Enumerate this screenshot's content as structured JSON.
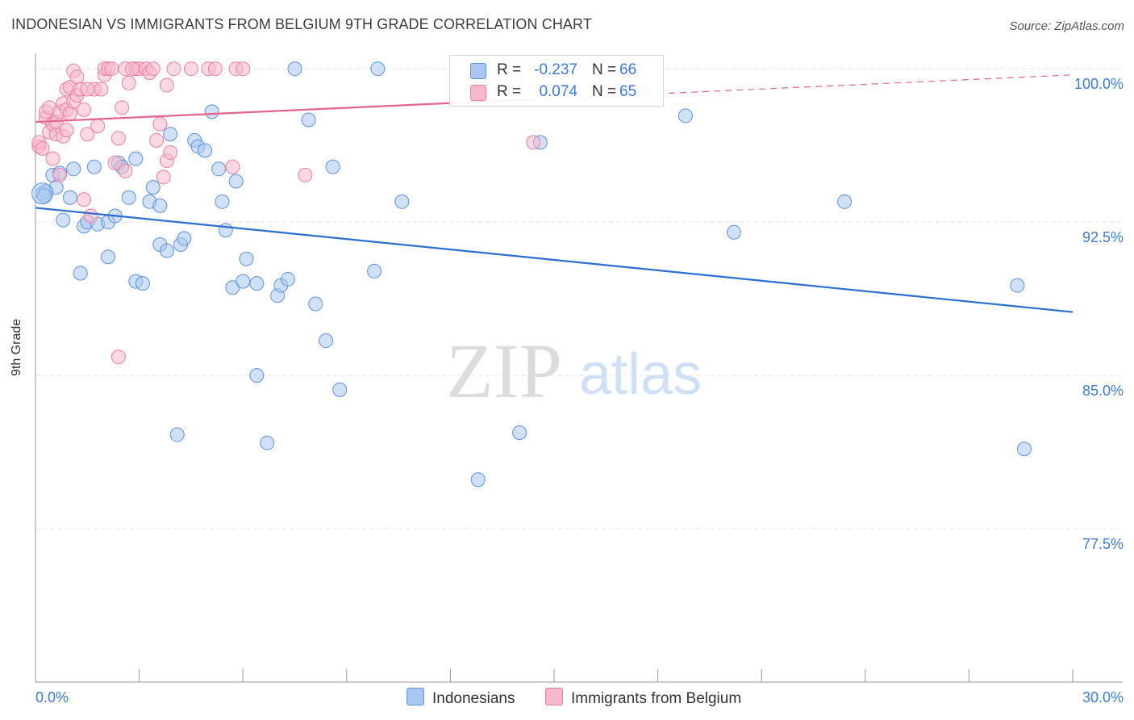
{
  "title": "INDONESIAN VS IMMIGRANTS FROM BELGIUM 9TH GRADE CORRELATION CHART",
  "source": "Source: ZipAtlas.com",
  "watermark": {
    "zip": "ZIP",
    "atlas": "atlas"
  },
  "legend": {
    "rows": [
      {
        "r_label": "R =",
        "r_value": "-0.237",
        "n_label": "N =",
        "n_value": "66",
        "color": "#a9c7f0"
      },
      {
        "r_label": "R =",
        "r_value": "0.074",
        "n_label": "N =",
        "n_value": "65",
        "color": "#f7b8cb"
      }
    ]
  },
  "bottom_legend": [
    "Indonesians",
    "Immigrants from Belgium"
  ],
  "chart_data": {
    "type": "scatter",
    "xlabel": "",
    "ylabel": "9th Grade",
    "xlim": [
      0,
      30
    ],
    "ylim": [
      70.0,
      100.6
    ],
    "x_tick_labels": [
      "0.0%",
      "30.0%"
    ],
    "y_ticks": [
      77.5,
      85.0,
      92.5,
      100.0
    ],
    "y_tick_labels": [
      "77.5%",
      "85.0%",
      "92.5%",
      "100.0%"
    ],
    "grid": true,
    "legend_position": "top-center",
    "series": [
      {
        "name": "Indonesians",
        "color": "#5b93e0",
        "fill": "#a9c7f0",
        "trend": {
          "x": [
            0,
            30
          ],
          "y": [
            93.2,
            88.1
          ]
        },
        "trend_line": "#2a6fd0",
        "points": [
          [
            0.2,
            93.9
          ],
          [
            0.3,
            94.0
          ],
          [
            0.5,
            94.8
          ],
          [
            0.6,
            94.2
          ],
          [
            0.7,
            94.9
          ],
          [
            0.8,
            92.6
          ],
          [
            1.0,
            93.7
          ],
          [
            1.1,
            95.1
          ],
          [
            1.3,
            90.0
          ],
          [
            1.4,
            92.3
          ],
          [
            1.5,
            92.5
          ],
          [
            1.7,
            95.2
          ],
          [
            1.8,
            92.4
          ],
          [
            2.1,
            90.8
          ],
          [
            2.1,
            92.5
          ],
          [
            2.3,
            92.8
          ],
          [
            2.4,
            95.4
          ],
          [
            2.5,
            95.2
          ],
          [
            2.7,
            93.7
          ],
          [
            2.9,
            95.6
          ],
          [
            2.9,
            89.6
          ],
          [
            3.1,
            89.5
          ],
          [
            3.3,
            93.5
          ],
          [
            3.4,
            94.2
          ],
          [
            3.6,
            93.3
          ],
          [
            3.6,
            91.4
          ],
          [
            3.8,
            91.1
          ],
          [
            3.9,
            96.8
          ],
          [
            4.1,
            82.1
          ],
          [
            4.2,
            91.4
          ],
          [
            4.3,
            91.7
          ],
          [
            4.6,
            96.5
          ],
          [
            4.7,
            96.2
          ],
          [
            4.9,
            96.0
          ],
          [
            5.1,
            97.9
          ],
          [
            5.3,
            95.1
          ],
          [
            5.4,
            93.5
          ],
          [
            5.5,
            92.1
          ],
          [
            5.7,
            89.3
          ],
          [
            5.8,
            94.5
          ],
          [
            6.0,
            89.6
          ],
          [
            6.1,
            90.7
          ],
          [
            6.4,
            89.5
          ],
          [
            6.4,
            85.0
          ],
          [
            6.7,
            81.7
          ],
          [
            7.0,
            88.9
          ],
          [
            7.1,
            89.4
          ],
          [
            7.3,
            89.7
          ],
          [
            7.5,
            100.0
          ],
          [
            7.9,
            97.5
          ],
          [
            8.1,
            88.5
          ],
          [
            8.4,
            86.7
          ],
          [
            8.6,
            95.2
          ],
          [
            8.8,
            84.3
          ],
          [
            9.8,
            90.1
          ],
          [
            9.9,
            100.0
          ],
          [
            10.6,
            93.5
          ],
          [
            12.8,
            79.9
          ],
          [
            14.0,
            82.2
          ],
          [
            14.6,
            96.4
          ],
          [
            18.8,
            97.7
          ],
          [
            20.2,
            92.0
          ],
          [
            23.4,
            93.5
          ],
          [
            28.4,
            89.4
          ],
          [
            28.6,
            81.4
          ],
          [
            0.25,
            93.8
          ]
        ]
      },
      {
        "name": "Immigrants from Belgium",
        "color": "#ec7fa2",
        "fill": "#f7b8cb",
        "trend": {
          "x": [
            0,
            30
          ],
          "y": [
            97.4,
            99.7
          ]
        },
        "trend_solid_until": 14.4,
        "trend_line": "#e6638e",
        "points": [
          [
            0.1,
            96.2
          ],
          [
            0.1,
            96.4
          ],
          [
            0.2,
            96.1
          ],
          [
            0.3,
            97.6
          ],
          [
            0.3,
            97.9
          ],
          [
            0.4,
            96.9
          ],
          [
            0.4,
            98.1
          ],
          [
            0.5,
            97.3
          ],
          [
            0.5,
            95.6
          ],
          [
            0.6,
            96.8
          ],
          [
            0.6,
            97.4
          ],
          [
            0.7,
            94.8
          ],
          [
            0.7,
            97.9
          ],
          [
            0.8,
            96.7
          ],
          [
            0.8,
            98.3
          ],
          [
            0.9,
            98.0
          ],
          [
            0.9,
            99.0
          ],
          [
            1.0,
            97.8
          ],
          [
            1.0,
            99.1
          ],
          [
            1.1,
            98.4
          ],
          [
            1.1,
            99.9
          ],
          [
            1.2,
            98.7
          ],
          [
            1.2,
            99.6
          ],
          [
            1.3,
            99.0
          ],
          [
            1.4,
            98.0
          ],
          [
            1.4,
            93.6
          ],
          [
            1.5,
            96.8
          ],
          [
            1.6,
            92.8
          ],
          [
            1.7,
            99.0
          ],
          [
            1.8,
            97.2
          ],
          [
            1.9,
            99.0
          ],
          [
            2.0,
            99.7
          ],
          [
            2.0,
            100.0
          ],
          [
            2.1,
            100.0
          ],
          [
            2.2,
            100.0
          ],
          [
            2.3,
            95.4
          ],
          [
            2.4,
            96.6
          ],
          [
            2.4,
            85.9
          ],
          [
            2.5,
            98.1
          ],
          [
            2.6,
            95.0
          ],
          [
            2.6,
            100.0
          ],
          [
            2.7,
            99.3
          ],
          [
            2.9,
            100.0
          ],
          [
            3.0,
            100.0
          ],
          [
            3.2,
            100.0
          ],
          [
            3.3,
            99.8
          ],
          [
            3.5,
            96.5
          ],
          [
            3.6,
            97.3
          ],
          [
            3.7,
            94.7
          ],
          [
            3.8,
            99.2
          ],
          [
            3.8,
            95.5
          ],
          [
            3.9,
            95.9
          ],
          [
            4.0,
            100.0
          ],
          [
            4.5,
            100.0
          ],
          [
            5.0,
            100.0
          ],
          [
            5.2,
            100.0
          ],
          [
            5.7,
            95.2
          ],
          [
            5.8,
            100.0
          ],
          [
            6.0,
            100.0
          ],
          [
            7.8,
            94.8
          ],
          [
            14.4,
            96.4
          ],
          [
            0.9,
            97.0
          ],
          [
            1.5,
            99.0
          ],
          [
            2.8,
            100.0
          ],
          [
            3.4,
            100.0
          ]
        ]
      }
    ]
  }
}
